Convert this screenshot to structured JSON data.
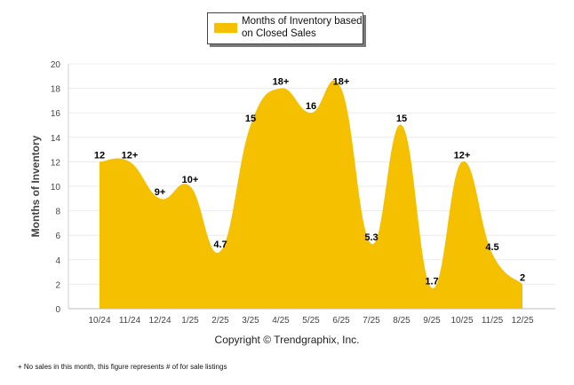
{
  "legend": {
    "label": "Months of Inventory based on Closed Sales",
    "color": "#F5C000"
  },
  "chart_data": {
    "type": "area",
    "title": "",
    "xlabel": "",
    "ylabel": "Months of Inventory",
    "categories": [
      "10/24",
      "11/24",
      "12/24",
      "1/25",
      "2/25",
      "3/25",
      "4/25",
      "5/25",
      "6/25",
      "7/25",
      "8/25",
      "9/25",
      "10/25",
      "11/25",
      "12/25"
    ],
    "series": [
      {
        "name": "Months of Inventory based on Closed Sales",
        "values": [
          12,
          12,
          9,
          10,
          4.7,
          15,
          18,
          16,
          18,
          5.3,
          15,
          1.7,
          12,
          4.5,
          2
        ],
        "labels": [
          "12",
          "12+",
          "9+",
          "10+",
          "4.7",
          "15",
          "18+",
          "16",
          "18+",
          "5.3",
          "15",
          "1.7",
          "12+",
          "4.5",
          "2"
        ]
      }
    ],
    "yticks": [
      "0",
      "2",
      "4",
      "6",
      "8",
      "10",
      "12",
      "14",
      "16",
      "18",
      "20"
    ],
    "ylim": [
      0,
      20
    ],
    "grid": true,
    "fill_color": "#F5C000"
  },
  "copyright": "Copyright © Trendgraphix, Inc.",
  "footnote": "+  No sales in this month, this figure represents # of for sale listings"
}
